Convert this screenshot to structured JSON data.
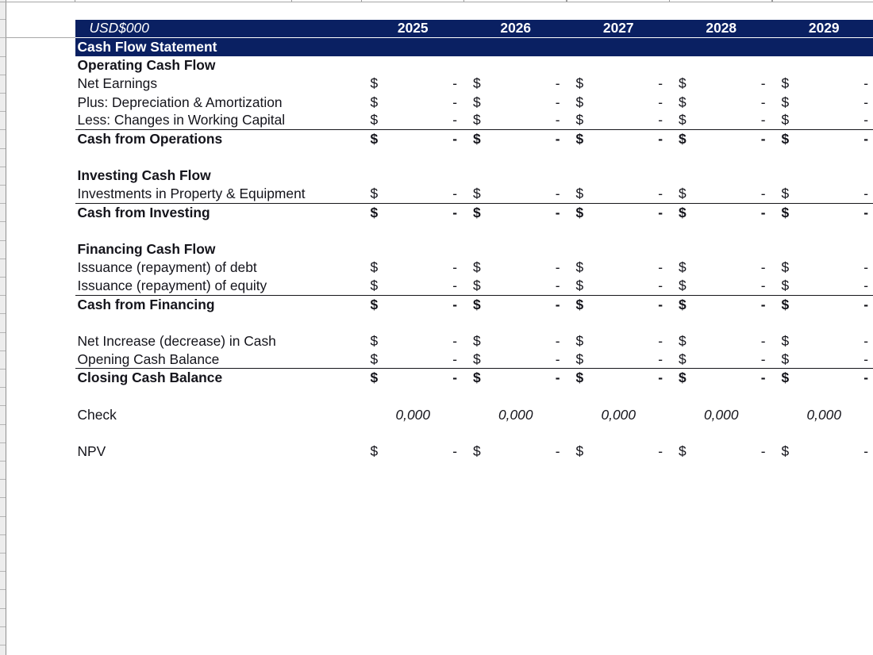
{
  "spreadsheet": {
    "unit_label": "USD$000",
    "years": [
      "2025",
      "2026",
      "2027",
      "2028",
      "2029"
    ],
    "title": "Cash Flow Statement",
    "currency_symbol": "$",
    "zero_value": "-",
    "check_value": "0,000",
    "colors": {
      "header_bg": "#0a2062",
      "header_text": "#ffffff",
      "body_text": "#14141b",
      "underline": "#15151a",
      "gridline": "#a6a6a6",
      "row_strip_bg": "#ededed"
    },
    "rows": [
      {
        "kind": "blank"
      },
      {
        "kind": "header"
      },
      {
        "kind": "title"
      },
      {
        "kind": "section",
        "label": "Operating Cash Flow"
      },
      {
        "kind": "money",
        "label": "Net Earnings",
        "values": [
          "-",
          "-",
          "-",
          "-",
          "-"
        ]
      },
      {
        "kind": "money",
        "label": "Plus: Depreciation & Amortization",
        "values": [
          "-",
          "-",
          "-",
          "-",
          "-"
        ]
      },
      {
        "kind": "money",
        "label": "Less: Changes in Working Capital",
        "values": [
          "-",
          "-",
          "-",
          "-",
          "-"
        ],
        "underline": true
      },
      {
        "kind": "money",
        "label": "Cash from Operations",
        "values": [
          "-",
          "-",
          "-",
          "-",
          "-"
        ],
        "bold": true
      },
      {
        "kind": "blank"
      },
      {
        "kind": "section",
        "label": "Investing Cash Flow"
      },
      {
        "kind": "money",
        "label": "Investments in Property & Equipment",
        "values": [
          "-",
          "-",
          "-",
          "-",
          "-"
        ],
        "underline": true
      },
      {
        "kind": "money",
        "label": "Cash from Investing",
        "values": [
          "-",
          "-",
          "-",
          "-",
          "-"
        ],
        "bold": true
      },
      {
        "kind": "blank"
      },
      {
        "kind": "section",
        "label": "Financing Cash Flow"
      },
      {
        "kind": "money",
        "label": "Issuance (repayment) of debt",
        "values": [
          "-",
          "-",
          "-",
          "-",
          "-"
        ]
      },
      {
        "kind": "money",
        "label": "Issuance (repayment) of equity",
        "values": [
          "-",
          "-",
          "-",
          "-",
          "-"
        ],
        "underline": true
      },
      {
        "kind": "money",
        "label": "Cash from Financing",
        "values": [
          "-",
          "-",
          "-",
          "-",
          "-"
        ],
        "bold": true
      },
      {
        "kind": "blank"
      },
      {
        "kind": "money",
        "label": "Net Increase (decrease) in Cash",
        "values": [
          "-",
          "-",
          "-",
          "-",
          "-"
        ]
      },
      {
        "kind": "money",
        "label": "Opening Cash Balance",
        "values": [
          "-",
          "-",
          "-",
          "-",
          "-"
        ],
        "underline": true
      },
      {
        "kind": "money",
        "label": "Closing Cash Balance",
        "values": [
          "-",
          "-",
          "-",
          "-",
          "-"
        ],
        "bold": true
      },
      {
        "kind": "blank"
      },
      {
        "kind": "check",
        "label": "Check",
        "values": [
          "0,000",
          "0,000",
          "0,000",
          "0,000",
          "0,000"
        ]
      },
      {
        "kind": "blank"
      },
      {
        "kind": "money",
        "label": "NPV",
        "values": [
          "-",
          "-",
          "-",
          "-",
          "-"
        ]
      }
    ]
  }
}
